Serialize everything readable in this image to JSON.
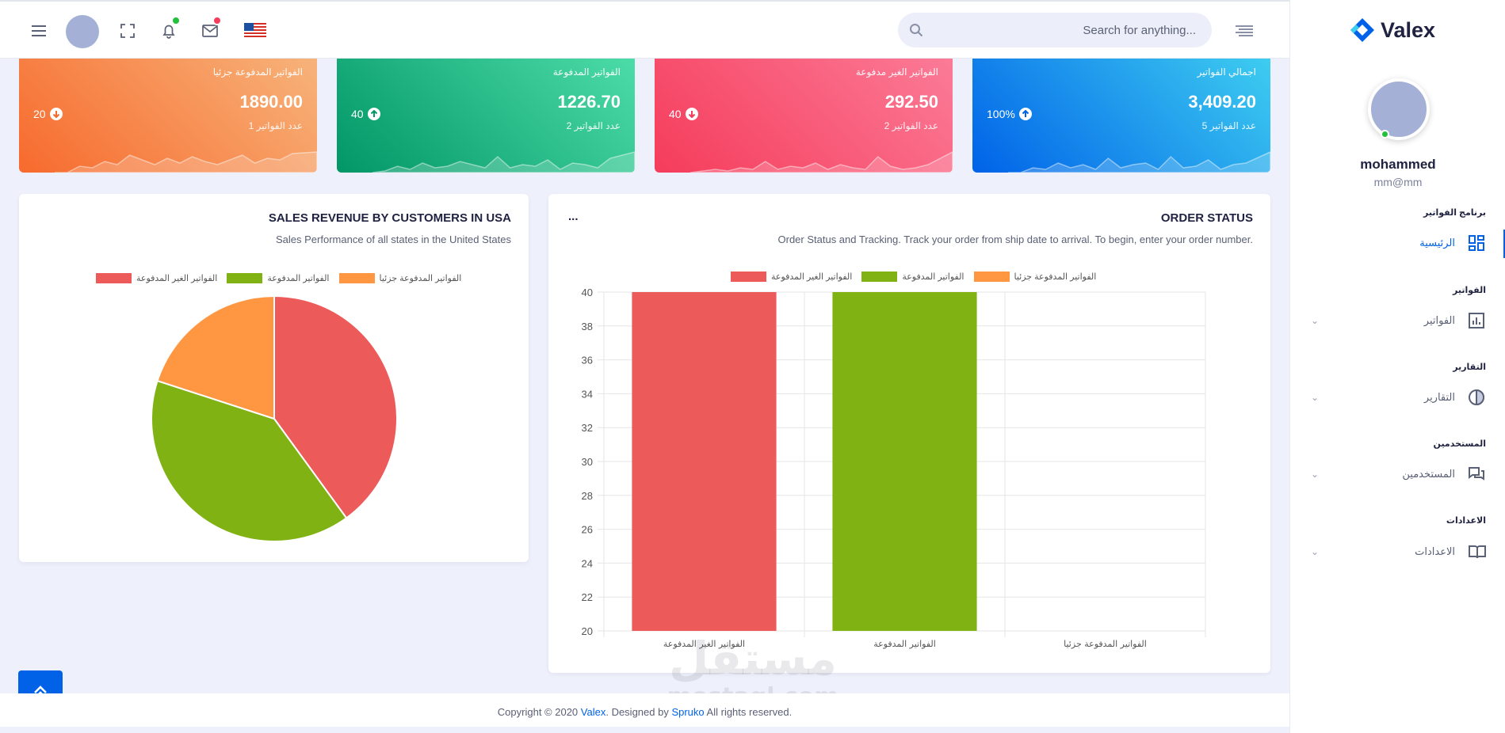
{
  "header": {
    "search_placeholder": "Search for anything...",
    "icons": [
      "menu-icon",
      "fullscreen-icon",
      "bell-icon",
      "mail-icon",
      "us-flag-icon",
      "search-icon",
      "align-right-icon"
    ],
    "notification_dot_color": "#22c03c",
    "mail_dot_color": "#f53c5b"
  },
  "brand": {
    "name": "Valex",
    "color": "#0162e8"
  },
  "user": {
    "name": "mohammed",
    "email": "mm@mm"
  },
  "sidebar": {
    "categories": [
      {
        "title": "برنامج الفواتير",
        "item": "الرئيسية",
        "icon": "dashboard-icon",
        "active": true
      },
      {
        "title": "الفواتير",
        "item": "الفواتير",
        "icon": "bar-chart-icon"
      },
      {
        "title": "التقارير",
        "item": "التقارير",
        "icon": "pie-chart-icon"
      },
      {
        "title": "المستخدمين",
        "item": "المستخدمين",
        "icon": "chat-icon"
      },
      {
        "title": "الاعدادات",
        "item": "الاعدادات",
        "icon": "book-icon"
      }
    ]
  },
  "stats": [
    {
      "title": "اجمالي الفواتير",
      "amount": "3,409.20",
      "sub": "عدد الفواتير 5",
      "pct": "100%",
      "trend": "up",
      "from": "#0062e8",
      "to": "#3ecdf0"
    },
    {
      "title": "الفواتير الغير مدفوعة",
      "amount": "292.50",
      "sub": "عدد الفواتير 2",
      "pct": "40",
      "trend": "down",
      "from": "#f53c5b",
      "to": "#fb7b97"
    },
    {
      "title": "الفواتير المدفوعة",
      "amount": "1226.70",
      "sub": "عدد الفواتير 2",
      "pct": "40",
      "trend": "up",
      "from": "#029666",
      "to": "#4cdca8"
    },
    {
      "title": "الفواتير المدفوعة جزئيا",
      "amount": "1890.00",
      "sub": "عدد الفواتير 1",
      "pct": "20",
      "trend": "down",
      "from": "#f76a2d",
      "to": "#f7b37a"
    }
  ],
  "order_status": {
    "title": "ORDER STATUS",
    "subtitle": "Order Status and Tracking. Track your order from ship date to arrival. To begin, enter your order number.",
    "more": "..."
  },
  "sales_revenue": {
    "title": "SALES REVENUE BY CUSTOMERS IN USA",
    "subtitle": "Sales Performance of all states in the United States"
  },
  "chart_data": [
    {
      "type": "bar",
      "categories": [
        "الفواتير الغير المدفوعة",
        "الفواتير المدفوعة",
        "الفواتير المدفوعة جزئيا"
      ],
      "series": [
        {
          "name": "الفواتير الغير المدفوعة",
          "values": [
            40,
            null,
            null
          ],
          "color": "#ec5a5a"
        },
        {
          "name": "الفواتير المدفوعة",
          "values": [
            null,
            40,
            null
          ],
          "color": "#81b214"
        },
        {
          "name": "الفواتير المدفوعة جزئيا",
          "values": [
            null,
            null,
            20
          ],
          "color": "#ff9642"
        }
      ],
      "ylim": [
        20,
        40
      ],
      "yticks": [
        20,
        22,
        24,
        26,
        28,
        30,
        32,
        34,
        36,
        38,
        40
      ],
      "legend": "top",
      "grid": true
    },
    {
      "type": "pie",
      "labels": [
        "الفواتير الغير المدفوعة",
        "الفواتير المدفوعة",
        "الفواتير المدفوعة جزئيا"
      ],
      "values": [
        40,
        40,
        20
      ],
      "colors": [
        "#ec5a5a",
        "#81b214",
        "#ff9642"
      ],
      "legend": "top"
    }
  ],
  "footer": {
    "pre": "Copyright © 2020 ",
    "brand": "Valex",
    "mid": ". Designed by ",
    "designer": "Spruko",
    "post": " All rights reserved."
  }
}
